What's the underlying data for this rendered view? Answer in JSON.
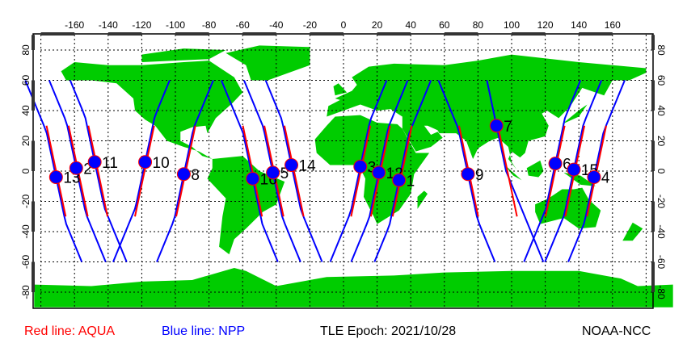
{
  "legend": {
    "aqua": "Red line: AQUA",
    "npp": "Blue line: NPP",
    "epoch": "TLE Epoch: 2021/10/28",
    "source": "NOAA-NCC"
  },
  "colors": {
    "land": "#00cc00",
    "ocean": "#ffffff",
    "aqua": "#ff0000",
    "npp": "#0000ff",
    "marker": "#0000ff"
  },
  "axes": {
    "lon_ticks": [
      -160,
      -140,
      -120,
      -100,
      -80,
      -60,
      -40,
      -20,
      0,
      20,
      40,
      60,
      80,
      100,
      120,
      140,
      160
    ],
    "lat_ticks": [
      80,
      60,
      40,
      20,
      0,
      -20,
      -40,
      -60,
      -80
    ],
    "lon_range": [
      -180,
      180
    ],
    "lat_range": [
      -90,
      90
    ],
    "grid": true
  },
  "passes": [
    {
      "label": "13",
      "lon": -171,
      "lat": -4,
      "dir": "desc"
    },
    {
      "label": "2",
      "lon": -159,
      "lat": 2,
      "dir": "desc"
    },
    {
      "label": "11",
      "lon": -148,
      "lat": 6,
      "dir": "desc"
    },
    {
      "label": "10",
      "lon": -118,
      "lat": 6,
      "dir": "asc"
    },
    {
      "label": "8",
      "lon": -95,
      "lat": -2,
      "dir": "asc"
    },
    {
      "label": "16",
      "lon": -54,
      "lat": -5,
      "dir": "desc"
    },
    {
      "label": "5",
      "lon": -42,
      "lat": -1,
      "dir": "desc"
    },
    {
      "label": "14",
      "lon": -31,
      "lat": 4,
      "dir": "desc"
    },
    {
      "label": "3",
      "lon": 10,
      "lat": 3,
      "dir": "asc"
    },
    {
      "label": "12",
      "lon": 21,
      "lat": -1,
      "dir": "asc"
    },
    {
      "label": "1",
      "lon": 33,
      "lat": -6,
      "dir": "asc"
    },
    {
      "label": "9",
      "lon": 74,
      "lat": -2,
      "dir": "desc"
    },
    {
      "label": "7",
      "lon": 91,
      "lat": 30,
      "dir": "desc"
    },
    {
      "label": "6",
      "lon": 126,
      "lat": 5,
      "dir": "asc"
    },
    {
      "label": "15",
      "lon": 137,
      "lat": 1,
      "dir": "asc"
    },
    {
      "label": "4",
      "lon": 149,
      "lat": -4,
      "dir": "asc"
    }
  ]
}
